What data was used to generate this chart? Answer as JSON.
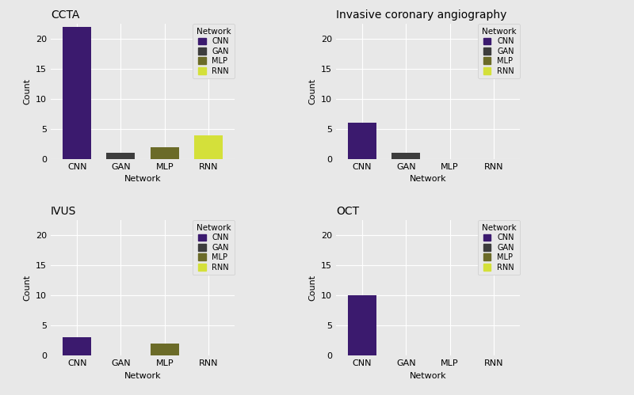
{
  "subplots": [
    {
      "title": "CCTA",
      "categories": [
        "CNN",
        "GAN",
        "MLP",
        "RNN"
      ],
      "values": [
        22,
        1,
        2,
        4
      ],
      "colors": [
        "#3b1a6e",
        "#3d3d3d",
        "#6b6b28",
        "#d4e03a"
      ]
    },
    {
      "title": "Invasive coronary angiography",
      "categories": [
        "CNN",
        "GAN",
        "MLP",
        "RNN"
      ],
      "values": [
        6,
        1,
        0,
        0
      ],
      "colors": [
        "#3b1a6e",
        "#3d3d3d",
        "#6b6b28",
        "#d4e03a"
      ]
    },
    {
      "title": "IVUS",
      "categories": [
        "CNN",
        "GAN",
        "MLP",
        "RNN"
      ],
      "values": [
        3,
        0,
        2,
        0
      ],
      "colors": [
        "#3b1a6e",
        "#3d3d3d",
        "#6b6b28",
        "#d4e03a"
      ]
    },
    {
      "title": "OCT",
      "categories": [
        "CNN",
        "GAN",
        "MLP",
        "RNN"
      ],
      "values": [
        10,
        0,
        0,
        0
      ],
      "colors": [
        "#3b1a6e",
        "#3d3d3d",
        "#6b6b28",
        "#d4e03a"
      ]
    }
  ],
  "legend_labels": [
    "CNN",
    "GAN",
    "MLP",
    "RNN"
  ],
  "legend_colors": [
    "#3b1a6e",
    "#3d3d3d",
    "#6b6b28",
    "#d4e03a"
  ],
  "legend_title": "Network",
  "ylabel": "Count",
  "xlabel": "Network",
  "ylim": [
    0,
    22.5
  ],
  "yticks": [
    0,
    5,
    10,
    15,
    20
  ],
  "background_color": "#e8e8e8",
  "grid_color": "#ffffff",
  "bar_width": 0.65
}
